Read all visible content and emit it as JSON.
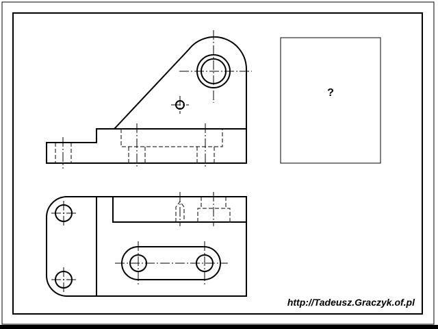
{
  "drawing": {
    "question_mark": "?",
    "footer_url": "http://Tadeusz.Graczyk.of.pl",
    "colors": {
      "ink": "#000000",
      "paper": "#ffffff",
      "bottom_bar": "#000000"
    }
  }
}
